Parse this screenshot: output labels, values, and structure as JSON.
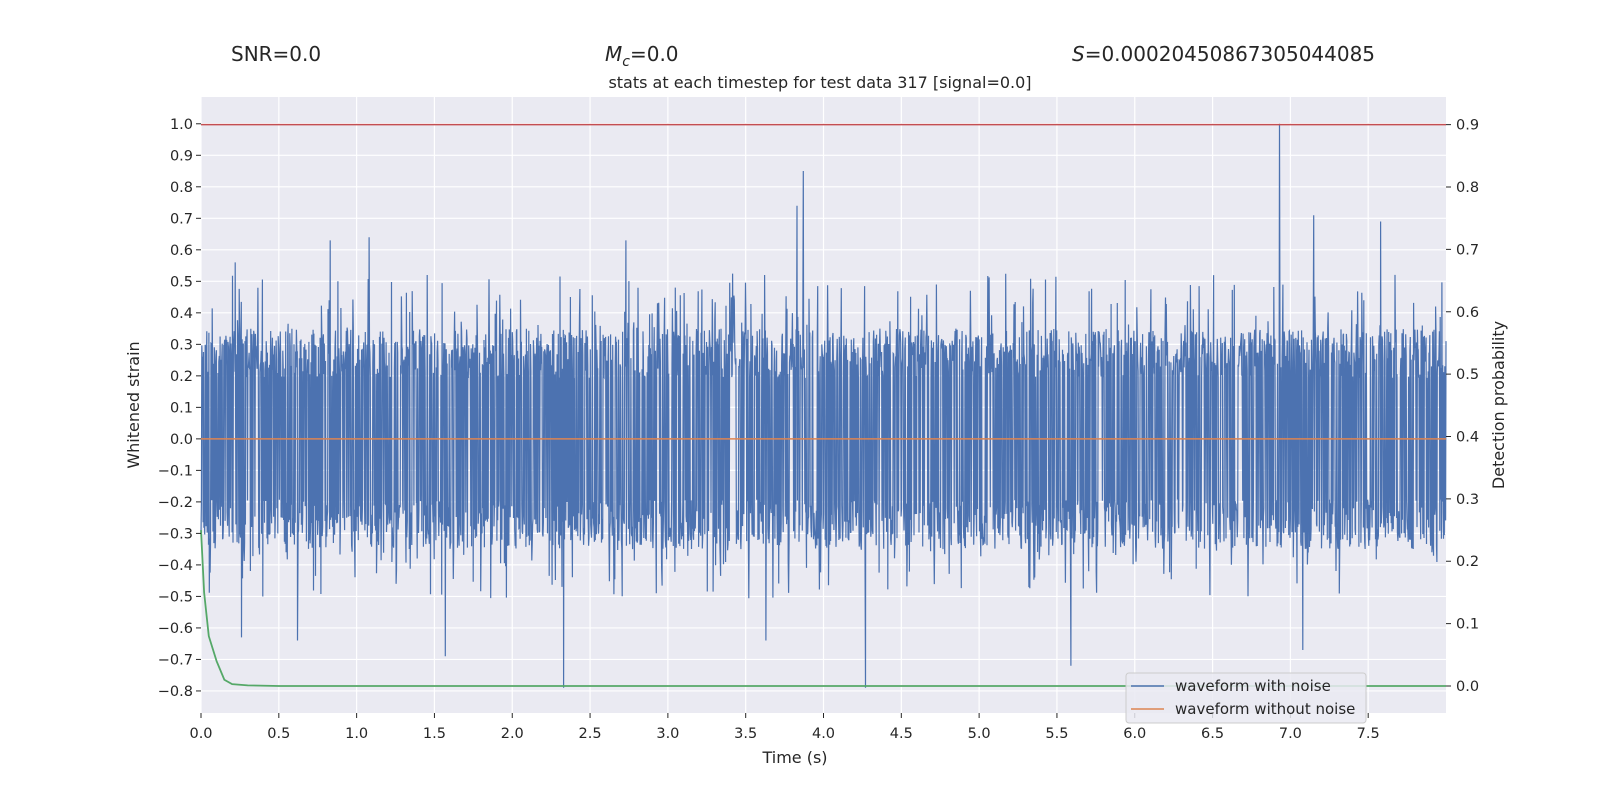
{
  "header": {
    "snr_label": "SNR=0.0",
    "mc_symbol": "M",
    "mc_sub": "c",
    "mc_value": "=0.0",
    "s_symbol": "S",
    "s_value": "=0.00020450867305044085"
  },
  "colors": {
    "background": "#eaeaf2",
    "grid": "#ffffff",
    "noise": "#4c72b0",
    "clean": "#dd8452",
    "probability": "#55a868",
    "threshold": "#c44e52"
  },
  "chart_data": {
    "type": "line",
    "title": "stats at each timestep for test data 317 [signal=0.0]",
    "xlabel": "Time (s)",
    "ylabel": "Whitened strain",
    "y2label": "Detection probability",
    "xlim": [
      0.0,
      8.0
    ],
    "ylim": [
      -0.87,
      1.085
    ],
    "y2lim": [
      -0.0433,
      0.9443
    ],
    "xticks": [
      0.0,
      0.5,
      1.0,
      1.5,
      2.0,
      2.5,
      3.0,
      3.5,
      4.0,
      4.5,
      5.0,
      5.5,
      6.0,
      6.5,
      7.0,
      7.5
    ],
    "xtick_labels": [
      "0.0",
      "0.5",
      "1.0",
      "1.5",
      "2.0",
      "2.5",
      "3.0",
      "3.5",
      "4.0",
      "4.5",
      "5.0",
      "5.5",
      "6.0",
      "6.5",
      "7.0",
      "7.5"
    ],
    "yticks": [
      1.0,
      0.9,
      0.8,
      0.7,
      0.6,
      0.5,
      0.4,
      0.3,
      0.2,
      0.1,
      0.0,
      -0.1,
      -0.2,
      -0.3,
      -0.4,
      -0.5,
      -0.6,
      -0.7,
      -0.8
    ],
    "ytick_labels": [
      "1.0",
      "0.9",
      "0.8",
      "0.7",
      "0.6",
      "0.5",
      "0.4",
      "0.3",
      "0.2",
      "0.1",
      "0.0",
      "−0.1",
      "−0.2",
      "−0.3",
      "−0.4",
      "−0.5",
      "−0.6",
      "−0.7",
      "−0.8"
    ],
    "y2ticks": [
      0.9,
      0.8,
      0.7,
      0.6,
      0.5,
      0.4,
      0.3,
      0.2,
      0.1,
      0.0
    ],
    "y2tick_labels": [
      "0.9",
      "0.8",
      "0.7",
      "0.6",
      "0.5",
      "0.4",
      "0.3",
      "0.2",
      "0.1",
      "0.0"
    ],
    "grid": true,
    "legend_position": "bottom-right",
    "series": [
      {
        "name": "waveform with noise",
        "axis": "left",
        "typical_range": [
          -0.35,
          0.35
        ],
        "notable_peaks": [
          {
            "x": 0.22,
            "y": 0.56
          },
          {
            "x": 0.83,
            "y": 0.63
          },
          {
            "x": 1.08,
            "y": 0.64
          },
          {
            "x": 2.73,
            "y": 0.63
          },
          {
            "x": 3.83,
            "y": 0.74
          },
          {
            "x": 3.87,
            "y": 0.85
          },
          {
            "x": 6.93,
            "y": 1.0
          },
          {
            "x": 7.15,
            "y": 0.71
          },
          {
            "x": 7.58,
            "y": 0.69
          }
        ],
        "notable_troughs": [
          {
            "x": 0.26,
            "y": -0.63
          },
          {
            "x": 0.62,
            "y": -0.64
          },
          {
            "x": 1.57,
            "y": -0.69
          },
          {
            "x": 2.33,
            "y": -0.79
          },
          {
            "x": 3.63,
            "y": -0.64
          },
          {
            "x": 4.27,
            "y": -0.79
          },
          {
            "x": 5.59,
            "y": -0.72
          },
          {
            "x": 7.08,
            "y": -0.67
          }
        ]
      },
      {
        "name": "waveform without noise",
        "axis": "left",
        "x": [
          0.0,
          8.0
        ],
        "y": [
          0.0,
          0.0
        ]
      },
      {
        "name": "detection probability",
        "axis": "right",
        "x": [
          0.0,
          0.02,
          0.05,
          0.1,
          0.15,
          0.2,
          0.3,
          0.5,
          8.0
        ],
        "y": [
          0.25,
          0.15,
          0.08,
          0.04,
          0.01,
          0.003,
          0.001,
          0.0,
          0.0
        ]
      },
      {
        "name": "threshold",
        "axis": "right",
        "x": [
          0.0,
          8.0
        ],
        "y": [
          0.9,
          0.9
        ]
      }
    ],
    "legend": [
      "waveform with noise",
      "waveform without noise"
    ]
  }
}
